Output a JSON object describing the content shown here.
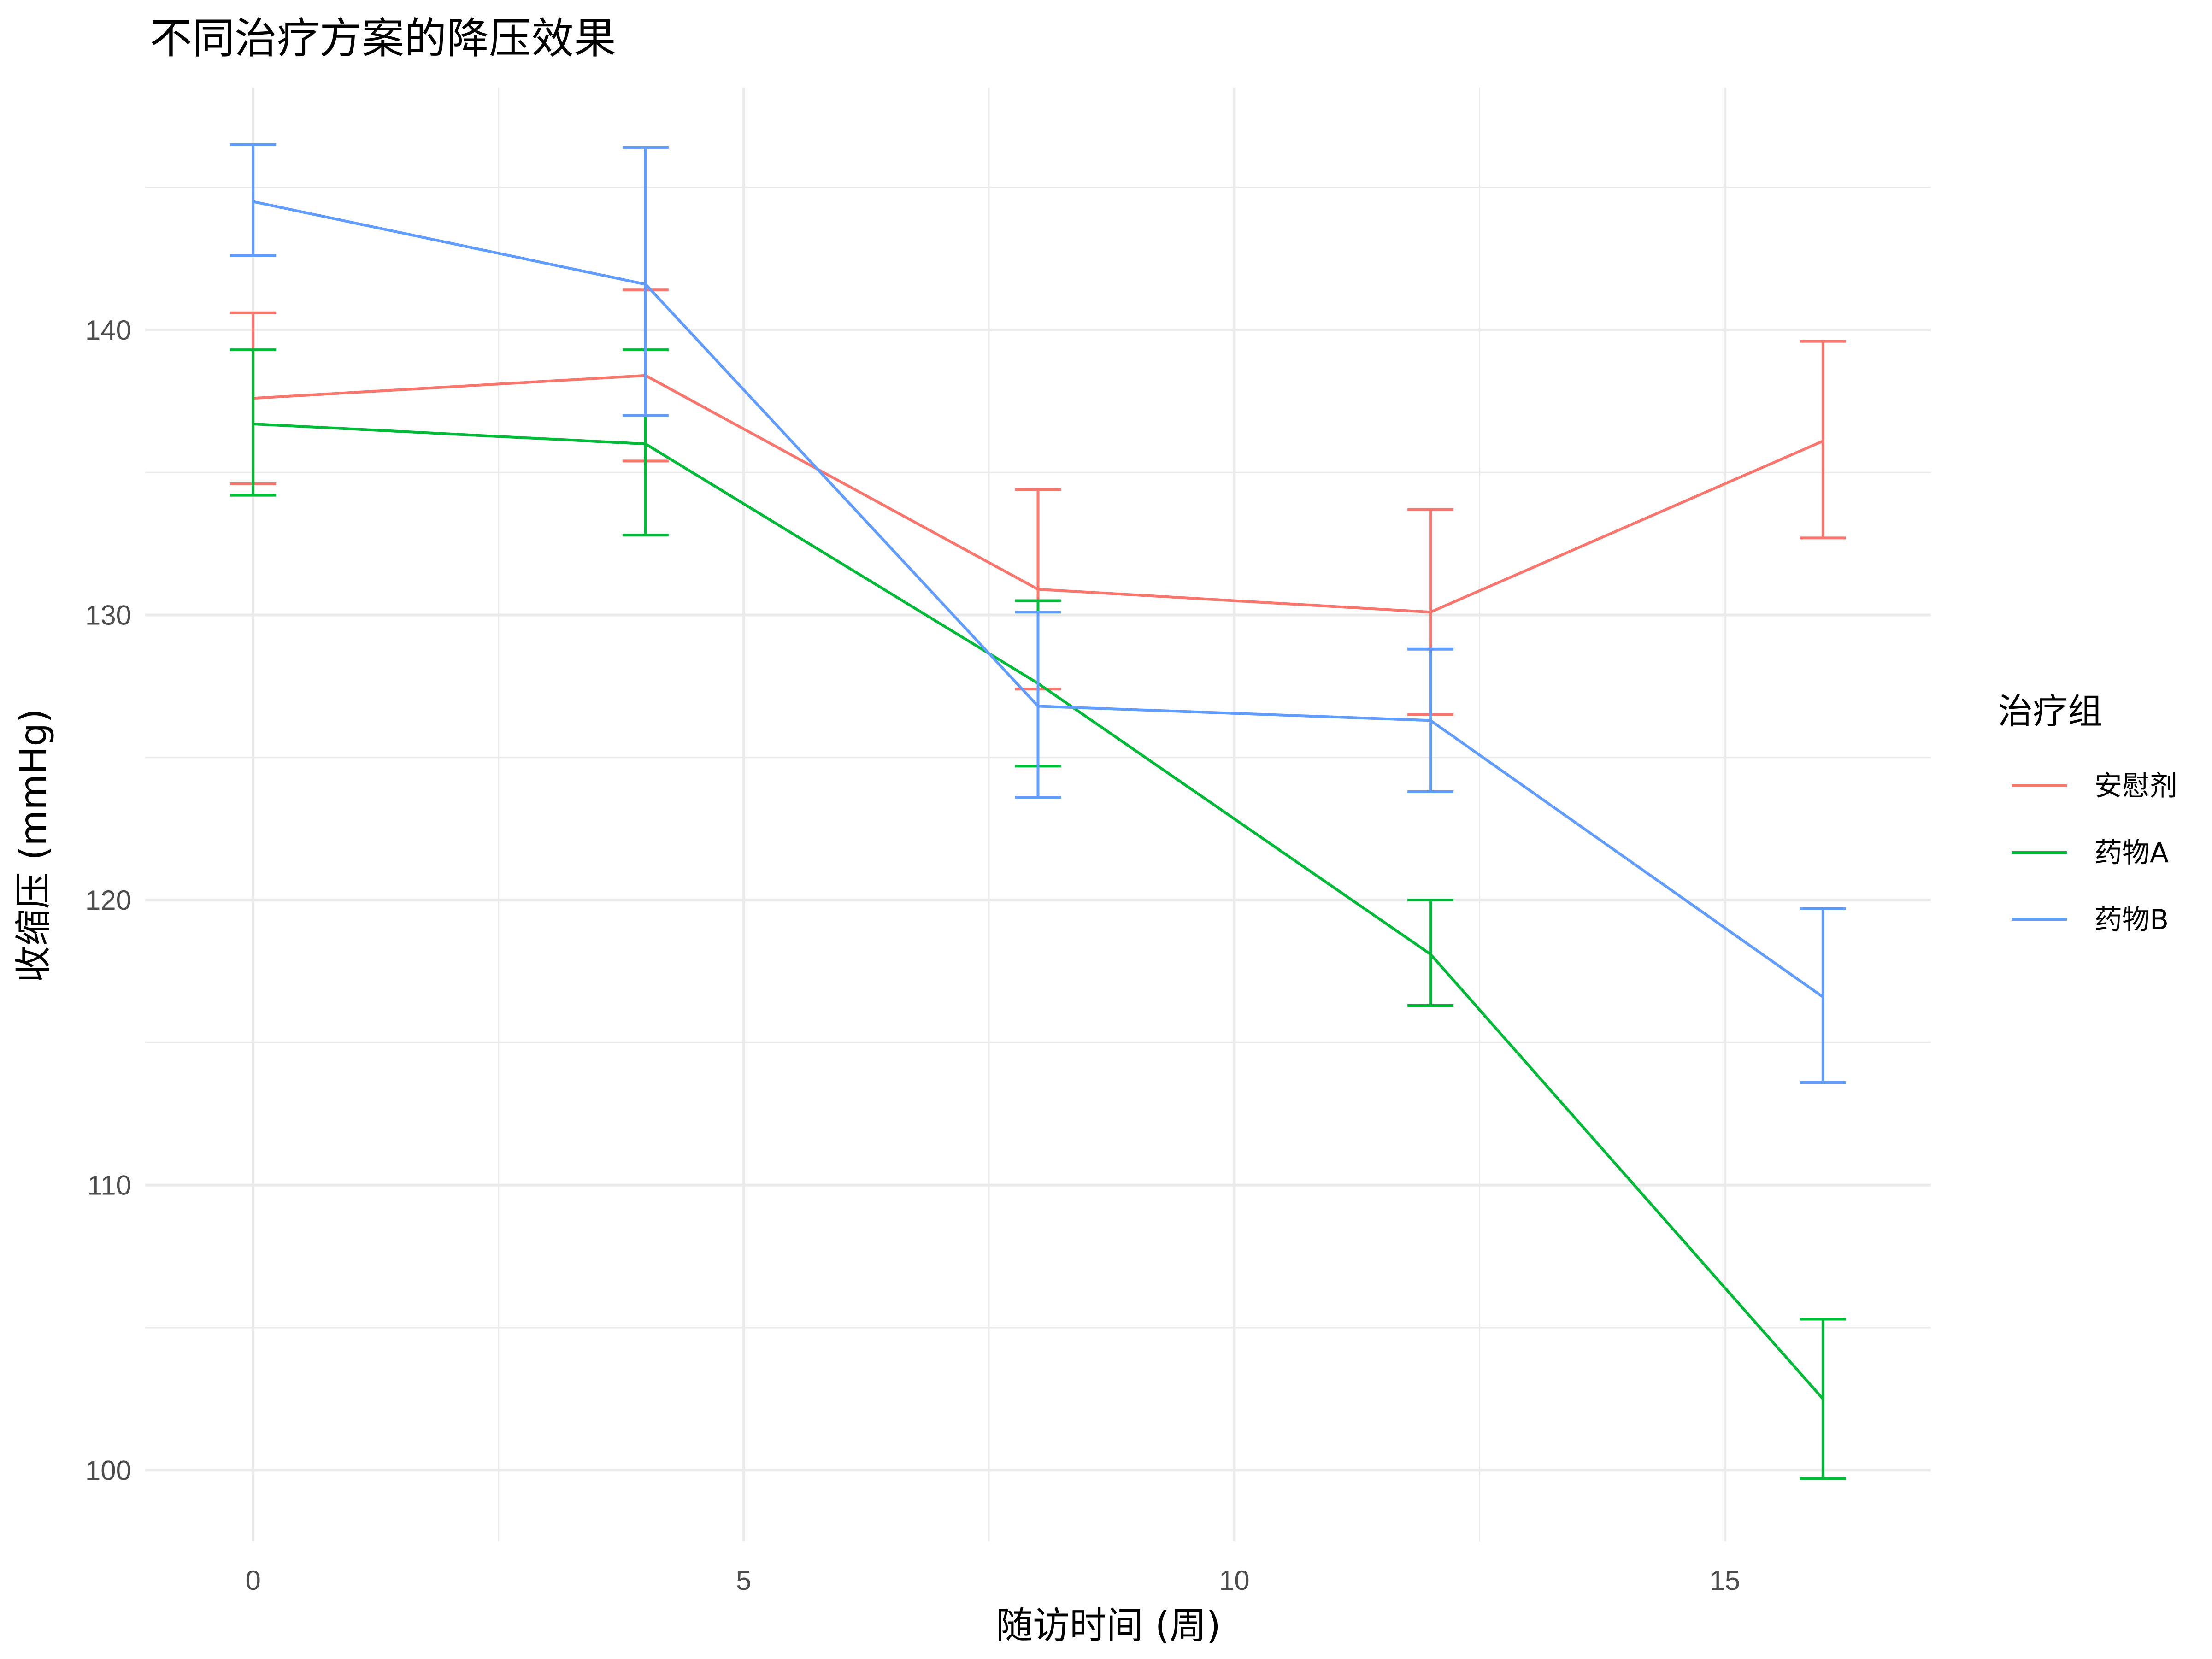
{
  "chart_data": {
    "type": "line",
    "title": "不同治疗方案的降压效果",
    "xlabel": "随访时间 (周)",
    "ylabel": "收缩压 (mmHg)",
    "x": [
      0,
      4,
      8,
      12,
      16
    ],
    "xlim": [
      -1.1,
      17.1
    ],
    "ylim": [
      97.5,
      148.5
    ],
    "x_ticks": [
      0,
      5,
      10,
      15
    ],
    "y_ticks": [
      100,
      110,
      120,
      130,
      140
    ],
    "grid": true,
    "legend": {
      "title": "治疗组",
      "position": "right"
    },
    "series": [
      {
        "name": "安慰剂",
        "color": "#F8766D",
        "values": [
          137.6,
          138.4,
          130.9,
          130.1,
          136.1
        ],
        "error_low": [
          134.6,
          135.4,
          127.4,
          126.5,
          132.7
        ],
        "error_high": [
          140.6,
          141.4,
          134.4,
          133.7,
          139.6
        ]
      },
      {
        "name": "药物A",
        "color": "#00BA38",
        "values": [
          136.7,
          136.0,
          127.6,
          118.1,
          102.5
        ],
        "error_low": [
          134.2,
          132.8,
          124.7,
          116.3,
          99.7
        ],
        "error_high": [
          139.3,
          139.3,
          130.5,
          120.0,
          105.3
        ]
      },
      {
        "name": "药物B",
        "color": "#619CFF",
        "values": [
          144.5,
          141.6,
          126.8,
          126.3,
          116.6
        ],
        "error_low": [
          142.6,
          137.0,
          123.6,
          123.8,
          113.6
        ],
        "error_high": [
          146.5,
          146.4,
          130.1,
          128.8,
          119.7
        ]
      }
    ]
  }
}
